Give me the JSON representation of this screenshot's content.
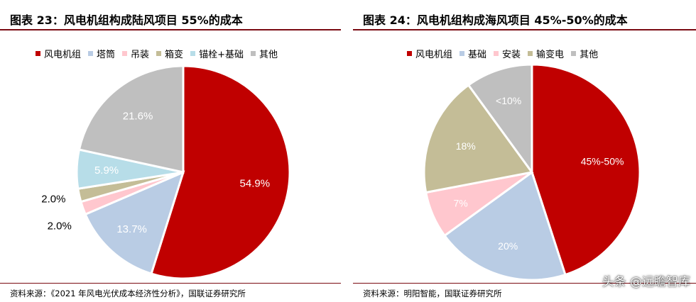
{
  "chart_data": [
    {
      "type": "pie",
      "title": "图表 23：风电机组构成陆风项目 55%的成本",
      "categories": [
        "风电机组",
        "塔筒",
        "吊装",
        "箱变",
        "锚栓+基础",
        "其他"
      ],
      "values": [
        54.9,
        13.7,
        2.0,
        2.0,
        5.9,
        21.6
      ],
      "labels": [
        "54.9%",
        "13.7%",
        "2.0%",
        "2.0%",
        "5.9%",
        "21.6%"
      ],
      "colors": [
        "#c00000",
        "#b9cce4",
        "#ffc7ce",
        "#c4bd97",
        "#b7dde8",
        "#bfbfbf"
      ],
      "label_colors": [
        "#ffffff",
        "#ffffff",
        "#000000",
        "#000000",
        "#ffffff",
        "#ffffff"
      ],
      "legend_placement": "top",
      "source": "资料来源：《2021 年风电光伏成本经济性分析》，国联证券研究所"
    },
    {
      "type": "pie",
      "title": "图表 24：风电机组构成海风项目 45%-50%的成本",
      "categories": [
        "风电机组",
        "基础",
        "安装",
        "输变电",
        "其他"
      ],
      "values": [
        45,
        20,
        7,
        18,
        10
      ],
      "labels": [
        "45%-50%",
        "20%",
        "7%",
        "18%",
        "<10%"
      ],
      "colors": [
        "#c00000",
        "#b9cce4",
        "#ffc7ce",
        "#c4bd97",
        "#bfbfbf"
      ],
      "label_colors": [
        "#ffffff",
        "#ffffff",
        "#ffffff",
        "#ffffff",
        "#ffffff"
      ],
      "legend_placement": "top",
      "source": "资料来源：明阳智能，国联证券研究所"
    }
  ],
  "watermark": "头条 @远瞻智库"
}
